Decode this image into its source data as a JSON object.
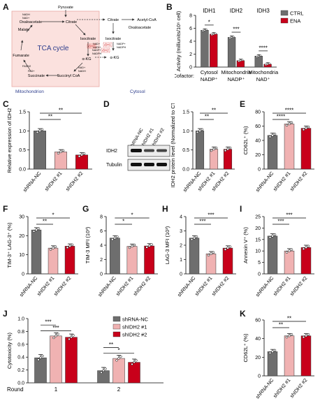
{
  "panel_labels": [
    "A",
    "B",
    "C",
    "D",
    "E",
    "F",
    "G",
    "H",
    "I",
    "J",
    "K"
  ],
  "panelA": {
    "title": "TCA cycle",
    "mito_label": "Mitochondrion",
    "cytosol_label": "Cytosol",
    "nodes": [
      "Pyruvate",
      "Citrate",
      "Oxaloacetate",
      "Malate",
      "Fumarate",
      "Succinate",
      "Succinyl CoA",
      "α-KG",
      "Isocitrate",
      "Citrate",
      "Acetyl-CoA",
      "Oxaloacetate",
      "Isocitrate",
      "α-KG"
    ],
    "cofactors": [
      "NADH",
      "NAD+",
      "NAD+",
      "NADH",
      "NADP+",
      "NADPH",
      "NADP+",
      "NADPH",
      "NAD+",
      "NADH",
      "FADH2",
      "FAD+"
    ],
    "enzymes": [
      "IDH3",
      "IDH2",
      "IDH1"
    ],
    "colors": {
      "mito_fill": "#fbe1de",
      "mito_border": "#e8a9a3",
      "enzyme": "#cc0000"
    }
  },
  "legend_B": [
    "CTRL",
    "ENA"
  ],
  "legend_J": [
    "shRNA-NC",
    "shIDH2 #1",
    "shIDH2 #2"
  ],
  "colors": {
    "ctrl": "#6e6e6e",
    "ena": "#c8001a",
    "nc": "#6e6e6e",
    "sh1": "#f0b2b2",
    "sh2": "#c8001a"
  },
  "groups3": [
    "shRNA-NC",
    "shIDH2 #1",
    "shIDH2 #2"
  ],
  "western": {
    "labels": [
      "IDH2",
      "Tubulin"
    ],
    "lanes": [
      "shRNA-NC",
      "shIDH2 #1",
      "shIDH2 #2"
    ]
  },
  "chart_data": [
    {
      "panel": "B",
      "type": "bar",
      "title": "",
      "group_labels": [
        "IDH1",
        "IDH2",
        "IDH3"
      ],
      "categories": [
        "Cytosol NADP+",
        "Mitochondria NADP+",
        "Mitochondria NAD+"
      ],
      "cofactor_label": "Cofactor:",
      "xtick_line1": [
        "Cytosol",
        "Mitochondria",
        "Mitochondria"
      ],
      "xtick_line2": [
        "NADP⁺",
        "NADP⁺",
        "NAD⁺"
      ],
      "ylabel": "Activity (milliunits/10⁶ cell)",
      "ylim": [
        0,
        8
      ],
      "yticks": [
        0,
        2,
        4,
        6,
        8
      ],
      "series": [
        {
          "name": "CTRL",
          "values": [
            5.7,
            4.6,
            1.7
          ]
        },
        {
          "name": "ENA",
          "values": [
            5.1,
            1.0,
            0.45
          ]
        }
      ],
      "sig": [
        "*",
        "***",
        "****"
      ]
    },
    {
      "panel": "C",
      "type": "bar",
      "categories": [
        "shRNA-NC",
        "shIDH2 #1",
        "shIDH2 #2"
      ],
      "values": [
        1.0,
        0.45,
        0.37
      ],
      "ylabel": "Relative expression of IDH2",
      "ylim": [
        0,
        1.5
      ],
      "yticks": [
        0,
        0.5,
        1.0,
        1.5
      ],
      "yfmt": 1,
      "sig": [
        {
          "from": 0,
          "to": 1,
          "text": "**"
        },
        {
          "from": 0,
          "to": 2,
          "text": "**"
        }
      ]
    },
    {
      "panel": "D",
      "type": "bar",
      "categories": [
        "shRNA-NC",
        "shIDH2 #1",
        "shIDH2 #2"
      ],
      "values": [
        1.0,
        0.52,
        0.52
      ],
      "ylabel": "IDH2 protein level (Normalized to CTRL)",
      "ylim": [
        0,
        1.5
      ],
      "yticks": [
        0,
        0.5,
        1.0,
        1.5
      ],
      "yfmt": 1,
      "sig": [
        {
          "from": 0,
          "to": 1,
          "text": "**"
        },
        {
          "from": 0,
          "to": 2,
          "text": "**"
        }
      ]
    },
    {
      "panel": "E",
      "type": "bar",
      "categories": [
        "shRNA-NC",
        "shIDH2 #1",
        "shIDH2 #2"
      ],
      "values": [
        47,
        63,
        57
      ],
      "ylabel": "CD62L⁺ (%)",
      "ylim": [
        0,
        80
      ],
      "yticks": [
        0,
        20,
        40,
        60,
        80
      ],
      "sig": [
        {
          "from": 0,
          "to": 1,
          "text": "****"
        },
        {
          "from": 0,
          "to": 2,
          "text": "****"
        }
      ]
    },
    {
      "panel": "F",
      "type": "bar",
      "categories": [
        "shRNA-NC",
        "shIDH2 #1",
        "shIDH2 #2"
      ],
      "values": [
        23,
        13.5,
        14.5
      ],
      "ylabel": "TIM-3⁺ LAG-3⁺ (%)",
      "ylim": [
        0,
        30
      ],
      "yticks": [
        0,
        10,
        20,
        30
      ],
      "sig": [
        {
          "from": 0,
          "to": 1,
          "text": "**"
        },
        {
          "from": 0,
          "to": 2,
          "text": "*"
        }
      ]
    },
    {
      "panel": "G",
      "type": "bar",
      "categories": [
        "shRNA-NC",
        "shIDH2 #1",
        "shIDH2 #2"
      ],
      "values": [
        5.0,
        3.85,
        3.9
      ],
      "ylabel": "TIM-3 MFI (10³)",
      "ylim": [
        0,
        8
      ],
      "yticks": [
        0,
        2,
        4,
        6,
        8
      ],
      "sig": [
        {
          "from": 0,
          "to": 1,
          "text": "*"
        },
        {
          "from": 0,
          "to": 2,
          "text": "*"
        }
      ]
    },
    {
      "panel": "H",
      "type": "bar",
      "categories": [
        "shRNA-NC",
        "shIDH2 #1",
        "shIDH2 #2"
      ],
      "values": [
        2.5,
        1.4,
        1.8
      ],
      "ylabel": "LAG-3 MFI (10³)",
      "ylim": [
        0,
        4
      ],
      "yticks": [
        0,
        1,
        2,
        3,
        4
      ],
      "sig": [
        {
          "from": 0,
          "to": 1,
          "text": "***"
        },
        {
          "from": 0,
          "to": 2,
          "text": "***"
        }
      ]
    },
    {
      "panel": "I",
      "type": "bar",
      "categories": [
        "shRNA-NC",
        "shIDH2 #1",
        "shIDH2 #2"
      ],
      "values": [
        16.5,
        10,
        11.5
      ],
      "ylabel": "Annexin V⁺ (%)",
      "ylim": [
        0,
        25
      ],
      "yticks": [
        0,
        5,
        10,
        15,
        20,
        25
      ],
      "sig": [
        {
          "from": 0,
          "to": 1,
          "text": "***"
        },
        {
          "from": 0,
          "to": 2,
          "text": "***"
        }
      ]
    },
    {
      "panel": "J",
      "type": "bar",
      "categories": [
        "1",
        "2"
      ],
      "xtitle": "Round",
      "ylabel": "Cytotoxicity (%)",
      "ylim": [
        0,
        1.0
      ],
      "yticks": [
        0,
        0.2,
        0.4,
        0.6,
        0.8,
        1.0
      ],
      "yfmt": 1,
      "series": [
        {
          "name": "shRNA-NC",
          "values": [
            0.39,
            0.19
          ]
        },
        {
          "name": "shIDH2 #1",
          "values": [
            0.73,
            0.38
          ]
        },
        {
          "name": "shIDH2 #2",
          "values": [
            0.71,
            0.32
          ]
        }
      ],
      "sig": [
        {
          "group": 0,
          "from": 0,
          "to": 1,
          "text": "***"
        },
        {
          "group": 0,
          "from": 0,
          "to": 2,
          "text": "***"
        },
        {
          "group": 1,
          "from": 0,
          "to": 1,
          "text": "**"
        },
        {
          "group": 1,
          "from": 0,
          "to": 2,
          "text": "*"
        }
      ]
    },
    {
      "panel": "K",
      "type": "bar",
      "categories": [
        "shRNA-NC",
        "shIDH2 #1",
        "shIDH2 #2"
      ],
      "values": [
        26,
        43,
        43
      ],
      "ylabel": "CD62L⁺ (%)",
      "ylim": [
        0,
        60
      ],
      "yticks": [
        0,
        20,
        40,
        60
      ],
      "sig": [
        {
          "from": 0,
          "to": 1,
          "text": "**"
        },
        {
          "from": 0,
          "to": 2,
          "text": "**"
        }
      ]
    }
  ]
}
